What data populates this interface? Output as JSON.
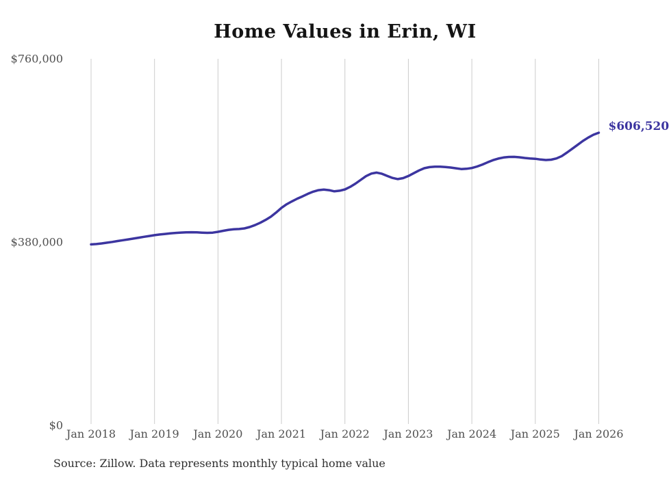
{
  "page": {
    "background": "#ffffff"
  },
  "chart_data": {
    "type": "line",
    "title": "Home Values in Erin, WI",
    "source_note": "Source: Zillow. Data represents monthly typical home value",
    "end_label": "$606,520",
    "latest_value": 606520,
    "x_start": "Jan 2018",
    "x_end": "Jan 2026",
    "frequency": "monthly",
    "x_tick_labels": [
      "Jan 2018",
      "Jan 2019",
      "Jan 2020",
      "Jan 2021",
      "Jan 2022",
      "Jan 2023",
      "Jan 2024",
      "Jan 2025",
      "Jan 2026"
    ],
    "y_ticks": [
      {
        "label": "$760,000",
        "value": 760000
      },
      {
        "label": "$380,000",
        "value": 380000
      },
      {
        "label": "$0",
        "value": 0
      }
    ],
    "ylim": [
      0,
      760000
    ],
    "grid": "vertical-only",
    "legend": "none",
    "line_color": "#3c35a0",
    "gridline_color": "#cccccc",
    "values": [
      374800,
      375600,
      376800,
      378300,
      380000,
      381800,
      383500,
      385200,
      386900,
      388700,
      390600,
      392300,
      394000,
      395400,
      396600,
      397700,
      398600,
      399400,
      399900,
      400100,
      399800,
      399200,
      398800,
      399300,
      401000,
      403000,
      405000,
      406200,
      406800,
      408100,
      410800,
      414800,
      419800,
      425600,
      432300,
      441000,
      450800,
      458200,
      464300,
      469700,
      474600,
      479800,
      484300,
      487400,
      488600,
      487300,
      485000,
      486200,
      488900,
      494300,
      501000,
      508800,
      516500,
      521900,
      523800,
      521400,
      517000,
      512800,
      510300,
      512400,
      516800,
      522500,
      528300,
      532900,
      535200,
      536100,
      536000,
      535400,
      534400,
      532800,
      531200,
      531800,
      533400,
      536500,
      540600,
      545200,
      549600,
      553000,
      555200,
      556300,
      556500,
      555600,
      554200,
      553200,
      552500,
      551000,
      550000,
      550600,
      553200,
      558000,
      565500,
      573500,
      581500,
      589500,
      596500,
      602500,
      606520
    ]
  }
}
